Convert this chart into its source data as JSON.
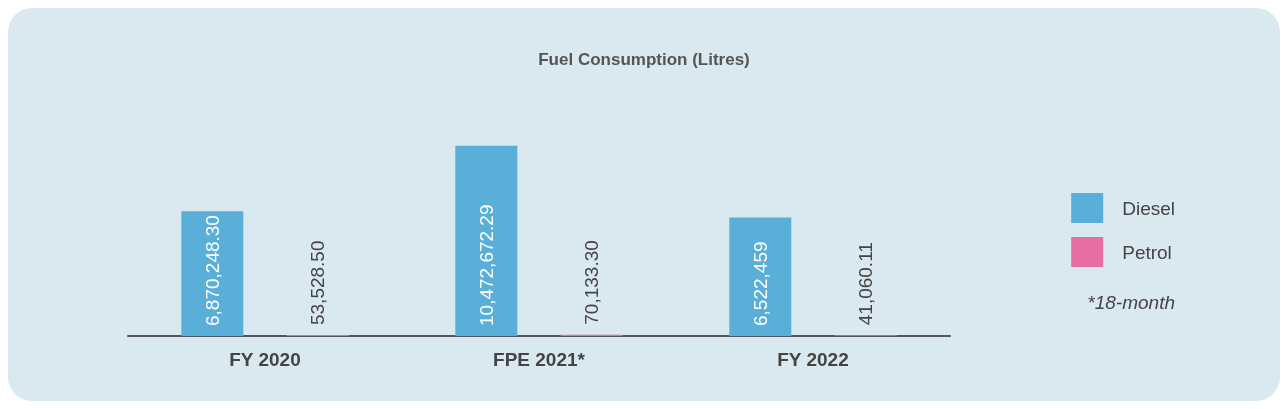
{
  "chart_data": {
    "type": "bar",
    "title": "Fuel Consumption (Litres)",
    "categories": [
      "FY 2020",
      "FPE 2021*",
      "FY 2022"
    ],
    "series": [
      {
        "name": "Diesel",
        "color": "#5aafd8",
        "values": [
          6870248.3,
          10472672.29,
          6522459
        ],
        "value_labels": [
          "6,870,248.30",
          "10,472,672.29",
          "6,522,459"
        ]
      },
      {
        "name": "Petrol",
        "color": "#e56fa1",
        "values": [
          53528.5,
          70133.3,
          41060.11
        ],
        "value_labels": [
          "53,528.50",
          "70,133.30",
          "41,060.11"
        ]
      }
    ],
    "legend": "right",
    "grid": false,
    "annotations": [
      "*18-month"
    ]
  }
}
